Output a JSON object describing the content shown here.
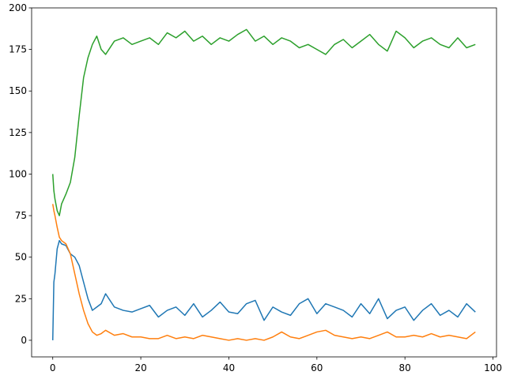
{
  "chart_data": {
    "type": "line",
    "x": [
      0,
      0.25,
      0.5,
      1,
      1.5,
      2,
      3,
      4,
      5,
      6,
      7,
      8,
      9,
      10,
      11,
      12,
      14,
      16,
      18,
      20,
      22,
      24,
      26,
      28,
      30,
      32,
      34,
      36,
      38,
      40,
      42,
      44,
      46,
      48,
      50,
      52,
      54,
      56,
      58,
      60,
      62,
      64,
      66,
      68,
      70,
      72,
      74,
      76,
      78,
      80,
      82,
      84,
      86,
      88,
      90,
      92,
      94,
      96
    ],
    "series": [
      {
        "color": "#1f77b4",
        "values": [
          0,
          35,
          40,
          55,
          60,
          58,
          57,
          52,
          50,
          45,
          35,
          25,
          18,
          20,
          22,
          28,
          20,
          18,
          17,
          19,
          21,
          14,
          18,
          20,
          15,
          22,
          14,
          18,
          23,
          17,
          16,
          22,
          24,
          12,
          20,
          17,
          15,
          22,
          25,
          16,
          22,
          20,
          18,
          14,
          22,
          16,
          25,
          13,
          18,
          20,
          12,
          18,
          22,
          15,
          18,
          14,
          22,
          17
        ]
      },
      {
        "color": "#ff7f0e",
        "values": [
          82,
          78,
          75,
          68,
          62,
          60,
          58,
          52,
          40,
          28,
          18,
          10,
          5,
          3,
          4,
          6,
          3,
          4,
          2,
          2,
          1,
          1,
          3,
          1,
          2,
          1,
          3,
          2,
          1,
          0,
          1,
          0,
          1,
          0,
          2,
          5,
          2,
          1,
          3,
          5,
          6,
          3,
          2,
          1,
          2,
          1,
          3,
          5,
          2,
          2,
          3,
          2,
          4,
          2,
          3,
          2,
          1,
          5
        ]
      },
      {
        "color": "#2ca02c",
        "values": [
          100,
          90,
          85,
          78,
          75,
          82,
          88,
          95,
          110,
          135,
          158,
          170,
          178,
          183,
          175,
          172,
          180,
          182,
          178,
          180,
          182,
          178,
          185,
          182,
          186,
          180,
          183,
          178,
          182,
          180,
          184,
          187,
          180,
          183,
          178,
          182,
          180,
          176,
          178,
          175,
          172,
          178,
          181,
          176,
          180,
          184,
          178,
          174,
          186,
          182,
          176,
          180,
          182,
          178,
          176,
          182,
          176,
          178
        ]
      }
    ],
    "xlim": [
      -4.8,
      100.8
    ],
    "xticks": [
      0,
      20,
      40,
      60,
      80,
      100
    ],
    "ylim": [
      -10,
      200
    ],
    "yticks": [
      0,
      25,
      50,
      75,
      100,
      125,
      150,
      175,
      200
    ],
    "grid": false
  }
}
